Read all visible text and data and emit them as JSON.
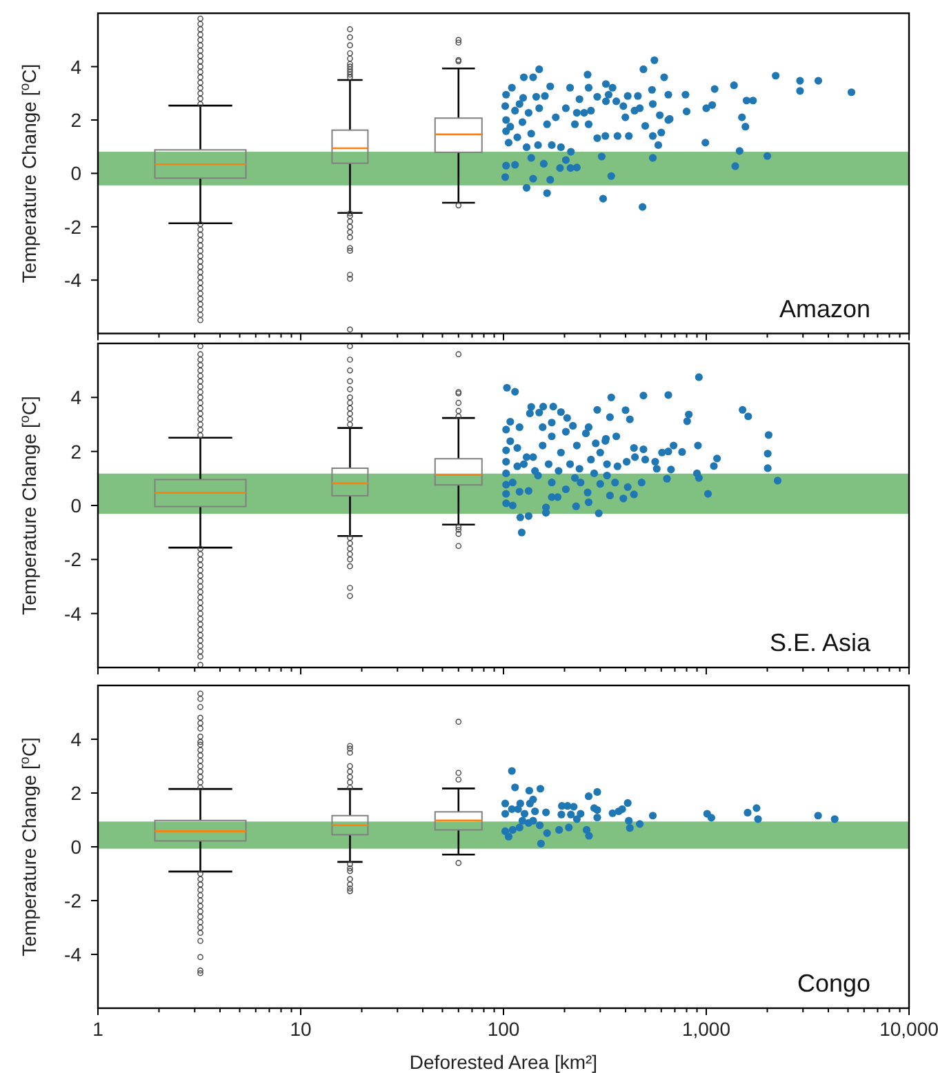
{
  "chart_data": [
    {
      "type": "scatter",
      "ylabel": "Temperature Change [$^{o}$C]",
      "annotations": [
        "Amazon"
      ],
      "log": "x",
      "xlim": [
        1,
        10000
      ],
      "xticks": [
        1,
        {
          "value": 2,
          "label": null
        },
        {
          "value": 3,
          "label": null
        },
        {
          "value": 4,
          "label": null
        },
        {
          "value": 5,
          "label": null
        },
        {
          "value": 6,
          "label": null
        },
        {
          "value": 7,
          "label": null
        },
        {
          "value": 8,
          "label": null
        },
        {
          "value": 9,
          "label": null
        },
        10,
        {
          "value": 20,
          "label": null
        },
        {
          "value": 30,
          "label": null
        },
        {
          "value": 40,
          "label": null
        },
        {
          "value": 50,
          "label": null
        },
        {
          "value": 60,
          "label": null
        },
        {
          "value": 70,
          "label": null
        },
        {
          "value": 80,
          "label": null
        },
        {
          "value": 90,
          "label": null
        },
        100,
        {
          "value": 200,
          "label": null
        },
        {
          "value": 300,
          "label": null
        },
        {
          "value": 400,
          "label": null
        },
        {
          "value": 500,
          "label": null
        },
        {
          "value": 600,
          "label": null
        },
        {
          "value": 700,
          "label": null
        },
        {
          "value": 800,
          "label": null
        },
        {
          "value": 900,
          "label": null
        },
        1000,
        {
          "value": 2000,
          "label": null
        },
        {
          "value": 3000,
          "label": null
        },
        {
          "value": 4000,
          "label": null
        },
        {
          "value": 5000,
          "label": null
        },
        {
          "value": 6000,
          "label": null
        },
        {
          "value": 7000,
          "label": null
        },
        {
          "value": 8000,
          "label": null
        },
        {
          "value": 9000,
          "label": null
        },
        10000
      ],
      "ylim": [
        -6,
        6
      ],
      "yticks": [
        -4,
        -2,
        0,
        2,
        4
      ],
      "tick_labels": "y",
      "marker": "circle",
      "bands": [
        {
          "axis": "y",
          "from": -0.45,
          "to": 0.81,
          "color": "#80c080"
        }
      ],
      "series": [
        {
          "type": "box",
          "color": "#808080",
          "x": [
            3.2,
            17.5,
            60
          ],
          "boxes": [
            {
              "low": -1.87,
              "q1": -0.18,
              "median": 0.34,
              "q3": 0.88,
              "high": 2.54,
              "outliers": [
                2.6,
                2.8,
                3.0,
                3.2,
                3.4,
                3.6,
                3.8,
                4.0,
                4.2,
                4.4,
                4.6,
                4.8,
                5.0,
                5.2,
                5.4,
                5.6,
                5.8,
                -1.9,
                -2.1,
                -2.3,
                -2.5,
                -2.7,
                -2.9,
                -3.1,
                -3.3,
                -3.5,
                -3.7,
                -3.9,
                -4.1,
                -4.3,
                -4.5,
                -4.7,
                -4.9,
                -5.1,
                -5.3,
                -5.5
              ]
            },
            {
              "low": -1.48,
              "q1": 0.38,
              "median": 0.94,
              "q3": 1.62,
              "high": 3.5,
              "outliers": [
                3.6,
                3.7,
                3.8,
                3.9,
                4.0,
                4.1,
                4.3,
                4.5,
                4.8,
                5.1,
                5.4,
                -1.5,
                -1.6,
                -1.8,
                -2.0,
                -2.2,
                -2.4,
                -2.8,
                -2.9,
                -3.8,
                -3.95,
                -5.85
              ]
            },
            {
              "low": -1.1,
              "q1": 0.79,
              "median": 1.46,
              "q3": 2.07,
              "high": 3.93,
              "outliers": [
                4.2,
                4.25,
                4.9,
                5.0,
                -1.2
              ]
            }
          ]
        },
        {
          "color": "#1f77b4",
          "x": [
            150,
            126,
            140,
            260,
            555,
            490,
            620,
            2200,
            2900,
            3570,
            2900,
            5200,
            1370,
            1100,
            1580,
            1700,
            1500,
            1560,
            1000,
            1070,
            990,
            1460,
            1390,
            2000,
            790,
            800,
            650,
            650,
            540,
            545,
            500,
            545,
            580,
            545,
            485,
            310,
            340,
            305,
            460,
            410,
            360,
            345,
            320,
            290,
            263,
            237,
            213,
            170,
            160,
            145,
            125,
            110,
            103,
            102,
            103,
            103,
            106,
            114,
            124,
            108,
            117,
            137,
            130,
            148,
            173,
            192,
            215,
            164,
            181,
            203,
            230,
            263,
            290,
            320,
            365,
            415,
            399,
            318,
            103,
            102,
            114,
            130,
            140,
            164,
            170,
            190,
            214,
            230,
            203,
            137,
            158,
            120,
            133,
            150,
            225,
            250,
            270,
            330,
            390,
            443,
            590,
            660,
            600,
            470
          ],
          "values": [
            3.9,
            3.6,
            3.6,
            3.7,
            4.24,
            3.9,
            3.6,
            3.66,
            3.47,
            3.47,
            3.09,
            3.04,
            3.3,
            3.16,
            2.73,
            2.73,
            2.1,
            1.75,
            2.44,
            2.56,
            1.15,
            0.84,
            0.27,
            0.65,
            2.95,
            2.32,
            2.0,
            2.95,
            3.13,
            2.6,
            1.78,
            1.4,
            1.06,
            0.58,
            -1.26,
            -0.95,
            -0.1,
            0.63,
            2.9,
            2.9,
            2.7,
            3.21,
            3.35,
            2.87,
            3.21,
            2.78,
            3.21,
            3.26,
            2.9,
            2.87,
            2.83,
            3.21,
            2.95,
            2.52,
            2.0,
            1.58,
            1.15,
            2.35,
            1.92,
            1.75,
            1.35,
            1.49,
            0.98,
            1.06,
            1.06,
            0.98,
            0.81,
            1.84,
            2.1,
            2.44,
            2.27,
            1.84,
            1.32,
            2.7,
            1.4,
            1.4,
            2.1,
            1.4,
            0.29,
            -0.14,
            0.32,
            -0.54,
            -0.2,
            -0.74,
            -0.24,
            0.2,
            0.2,
            0.22,
            0.5,
            0.58,
            0.36,
            2.6,
            2.27,
            2.44,
            1.84,
            2.27,
            2.35,
            2.95,
            2.52,
            2.35,
            2.18,
            2.04,
            1.53,
            2.44
          ]
        }
      ]
    },
    {
      "type": "scatter",
      "ylabel": "Temperature Change [$^{o}$C]",
      "annotations": [
        "S.E. Asia"
      ],
      "log": "x",
      "xlim": [
        1,
        10000
      ],
      "xticks": [
        1,
        {
          "value": 2,
          "label": null
        },
        {
          "value": 3,
          "label": null
        },
        {
          "value": 4,
          "label": null
        },
        {
          "value": 5,
          "label": null
        },
        {
          "value": 6,
          "label": null
        },
        {
          "value": 7,
          "label": null
        },
        {
          "value": 8,
          "label": null
        },
        {
          "value": 9,
          "label": null
        },
        10,
        {
          "value": 20,
          "label": null
        },
        {
          "value": 30,
          "label": null
        },
        {
          "value": 40,
          "label": null
        },
        {
          "value": 50,
          "label": null
        },
        {
          "value": 60,
          "label": null
        },
        {
          "value": 70,
          "label": null
        },
        {
          "value": 80,
          "label": null
        },
        {
          "value": 90,
          "label": null
        },
        100,
        {
          "value": 200,
          "label": null
        },
        {
          "value": 300,
          "label": null
        },
        {
          "value": 400,
          "label": null
        },
        {
          "value": 500,
          "label": null
        },
        {
          "value": 600,
          "label": null
        },
        {
          "value": 700,
          "label": null
        },
        {
          "value": 800,
          "label": null
        },
        {
          "value": 900,
          "label": null
        },
        1000,
        {
          "value": 2000,
          "label": null
        },
        {
          "value": 3000,
          "label": null
        },
        {
          "value": 4000,
          "label": null
        },
        {
          "value": 5000,
          "label": null
        },
        {
          "value": 6000,
          "label": null
        },
        {
          "value": 7000,
          "label": null
        },
        {
          "value": 8000,
          "label": null
        },
        {
          "value": 9000,
          "label": null
        },
        10000
      ],
      "ylim": [
        -6,
        6
      ],
      "yticks": [
        -4,
        -2,
        0,
        2,
        4
      ],
      "tick_labels": "y",
      "marker": "circle",
      "bands": [
        {
          "axis": "y",
          "from": -0.31,
          "to": 1.18,
          "color": "#80c080"
        }
      ],
      "series": [
        {
          "type": "box",
          "color": "#808080",
          "x": [
            3.2,
            17.5,
            60
          ],
          "boxes": [
            {
              "low": -1.56,
              "q1": -0.04,
              "median": 0.47,
              "q3": 0.96,
              "high": 2.51,
              "outliers": [
                2.6,
                2.8,
                3.0,
                3.2,
                3.4,
                3.6,
                3.8,
                4.0,
                4.2,
                4.4,
                4.6,
                4.8,
                5.0,
                5.2,
                5.4,
                5.6,
                5.9,
                -1.6,
                -1.8,
                -2.0,
                -2.2,
                -2.4,
                -2.6,
                -2.8,
                -3.0,
                -3.2,
                -3.4,
                -3.6,
                -3.8,
                -4.0,
                -4.2,
                -4.4,
                -4.6,
                -4.8,
                -5.0,
                -5.2,
                -5.4,
                -5.6,
                -5.9
              ]
            },
            {
              "low": -1.13,
              "q1": 0.36,
              "median": 0.82,
              "q3": 1.38,
              "high": 2.87,
              "outliers": [
                3.0,
                3.2,
                3.4,
                3.6,
                3.8,
                4.0,
                4.3,
                4.6,
                5.0,
                5.4,
                5.9,
                -1.2,
                -1.4,
                -1.6,
                -1.8,
                -2.0,
                -2.25,
                -3.05,
                -3.35
              ]
            },
            {
              "low": -0.71,
              "q1": 0.76,
              "median": 1.13,
              "q3": 1.73,
              "high": 3.24,
              "outliers": [
                3.3,
                3.5,
                3.8,
                4.15,
                4.2,
                5.6,
                -0.8,
                -0.9,
                -1.05,
                -1.5
              ]
            }
          ]
        },
        {
          "color": "#1f77b4",
          "x": [
            104,
            114,
            920,
            340,
            490,
            650,
            1510,
            1610,
            2030,
            2010,
            2010,
            2250,
            805,
            820,
            910,
            900,
            920,
            1020,
            1090,
            1130,
            760,
            690,
            650,
            605,
            570,
            640,
            670,
            490,
            440,
            420,
            400,
            335,
            290,
            360,
            320,
            285,
            255,
            220,
            206,
            192,
            176,
            157,
            137,
            135,
            150,
            108,
            120,
            103,
            108,
            103,
            103,
            103,
            103,
            103,
            103,
            111,
            121,
            133,
            123,
            162,
            162,
            173,
            185,
            228,
            263,
            295,
            260,
            335,
            390,
            440,
            410,
            480,
            355,
            300,
            240,
            203,
            173,
            148,
            133,
            126,
            140,
            156,
            173,
            192,
            213,
            237,
            270,
            300,
            324,
            365,
            405,
            445,
            500,
            560,
            156,
            173,
            203,
            230,
            263,
            318,
            117,
            130,
            117,
            143,
            167,
            187,
            225,
            280,
            324,
            111,
            120
          ],
          "values": [
            4.36,
            4.21,
            4.75,
            4.0,
            4.07,
            4.09,
            3.54,
            3.3,
            2.61,
            1.92,
            1.38,
            0.92,
            3.12,
            3.37,
            2.22,
            1.19,
            1.02,
            0.43,
            1.46,
            1.74,
            1.98,
            2.22,
            2.0,
            1.96,
            1.36,
            0.99,
            1.33,
            2.08,
            2.13,
            3.19,
            3.53,
            3.27,
            3.54,
            2.56,
            2.47,
            2.3,
            2.67,
            2.95,
            3.24,
            3.46,
            3.66,
            3.66,
            3.65,
            3.41,
            3.44,
            3.1,
            2.9,
            2.81,
            2.38,
            2.04,
            1.62,
            1.19,
            0.77,
            0.43,
            0.08,
            0.0,
            -0.44,
            -0.39,
            -1.0,
            -0.27,
            -0.07,
            0.31,
            0.31,
            -0.03,
            0.12,
            -0.29,
            0.48,
            0.37,
            0.26,
            0.41,
            0.68,
            0.85,
            0.85,
            0.8,
            0.85,
            0.6,
            0.85,
            1.11,
            0.54,
            1.53,
            1.79,
            2.22,
            2.56,
            1.96,
            1.53,
            1.36,
            1.7,
            1.96,
            1.53,
            1.45,
            1.62,
            1.79,
            1.7,
            1.62,
            2.9,
            3.07,
            2.73,
            2.22,
            2.9,
            2.39,
            2.13,
            1.79,
            1.45,
            1.28,
            1.53,
            1.28,
            1.02,
            1.19,
            1.11,
            0.85,
            0.51
          ]
        }
      ]
    },
    {
      "type": "scatter",
      "ylabel": "Temperature Change [$^{o}$C]",
      "xlabel": "Deforested Area [km²]",
      "annotations": [
        "Congo"
      ],
      "log": "x",
      "xlim": [
        1,
        10000
      ],
      "xticks": [
        1,
        {
          "value": 2,
          "label": null
        },
        {
          "value": 3,
          "label": null
        },
        {
          "value": 4,
          "label": null
        },
        {
          "value": 5,
          "label": null
        },
        {
          "value": 6,
          "label": null
        },
        {
          "value": 7,
          "label": null
        },
        {
          "value": 8,
          "label": null
        },
        {
          "value": 9,
          "label": null
        },
        10,
        {
          "value": 20,
          "label": null
        },
        {
          "value": 30,
          "label": null
        },
        {
          "value": 40,
          "label": null
        },
        {
          "value": 50,
          "label": null
        },
        {
          "value": 60,
          "label": null
        },
        {
          "value": 70,
          "label": null
        },
        {
          "value": 80,
          "label": null
        },
        {
          "value": 90,
          "label": null
        },
        100,
        {
          "value": 200,
          "label": null
        },
        {
          "value": 300,
          "label": null
        },
        {
          "value": 400,
          "label": null
        },
        {
          "value": 500,
          "label": null
        },
        {
          "value": 600,
          "label": null
        },
        {
          "value": 700,
          "label": null
        },
        {
          "value": 800,
          "label": null
        },
        {
          "value": 900,
          "label": null
        },
        {
          "value": 1000,
          "label": "1,000"
        },
        {
          "value": 2000,
          "label": null
        },
        {
          "value": 3000,
          "label": null
        },
        {
          "value": 4000,
          "label": null
        },
        {
          "value": 5000,
          "label": null
        },
        {
          "value": 6000,
          "label": null
        },
        {
          "value": 7000,
          "label": null
        },
        {
          "value": 8000,
          "label": null
        },
        {
          "value": 9000,
          "label": null
        },
        {
          "value": 10000,
          "label": "10,000"
        }
      ],
      "ylim": [
        -6,
        6
      ],
      "yticks": [
        -4,
        -2,
        0,
        2,
        4
      ],
      "marker": "circle",
      "bands": [
        {
          "axis": "y",
          "from": -0.07,
          "to": 0.94,
          "color": "#80c080"
        }
      ],
      "series": [
        {
          "type": "box",
          "color": "#808080",
          "x": [
            3.2,
            17.5,
            60
          ],
          "boxes": [
            {
              "low": -0.92,
              "q1": 0.22,
              "median": 0.58,
              "q3": 0.98,
              "high": 2.15,
              "outliers": [
                2.2,
                2.4,
                2.6,
                2.8,
                3.0,
                3.2,
                3.4,
                3.6,
                3.8,
                3.9,
                4.1,
                4.4,
                4.6,
                4.8,
                5.2,
                5.5,
                5.7,
                -1.0,
                -1.2,
                -1.4,
                -1.6,
                -1.8,
                -2.0,
                -2.2,
                -2.4,
                -2.6,
                -2.8,
                -3.0,
                -3.2,
                -3.5,
                -4.1,
                -4.6,
                -4.7
              ]
            },
            {
              "low": -0.56,
              "q1": 0.45,
              "median": 0.8,
              "q3": 1.16,
              "high": 2.15,
              "outliers": [
                2.2,
                2.4,
                2.6,
                2.8,
                3.0,
                3.5,
                3.65,
                3.75,
                -0.65,
                -0.8,
                -0.9,
                -1.2,
                -1.4,
                -1.55,
                -1.65
              ]
            },
            {
              "low": -0.29,
              "q1": 0.63,
              "median": 0.98,
              "q3": 1.3,
              "high": 2.17,
              "outliers": [
                2.5,
                2.75,
                4.65,
                -0.6
              ]
            }
          ]
        },
        {
          "color": "#1f77b4",
          "x": [
            110,
            114,
            134,
            152,
            263,
            290,
            102,
            121,
            135,
            140,
            194,
            207,
            222,
            280,
            290,
            410,
            385,
            370,
            345,
            102,
            110,
            118,
            127,
            143,
            162,
            193,
            215,
            240,
            545,
            1010,
            1060,
            1600,
            1770,
            1800,
            3560,
            4300,
            290,
            415,
            470,
            420,
            102,
            106,
            111,
            120,
            133,
            151,
            164,
            188,
            210,
            230,
            257,
            264,
            153,
            140,
            124
          ],
          "values": [
            2.82,
            2.21,
            2.09,
            2.16,
            1.88,
            2.04,
            1.61,
            1.61,
            1.61,
            1.76,
            1.52,
            1.52,
            1.49,
            1.44,
            1.37,
            1.63,
            1.4,
            1.32,
            1.25,
            1.23,
            1.4,
            1.4,
            1.23,
            1.32,
            1.28,
            1.2,
            1.2,
            1.23,
            1.16,
            1.23,
            1.08,
            1.27,
            1.44,
            1.03,
            1.16,
            1.03,
            1.09,
            0.97,
            0.85,
            0.7,
            0.58,
            0.38,
            0.63,
            0.72,
            0.89,
            0.8,
            0.51,
            0.63,
            0.72,
            1.03,
            0.63,
            0.41,
            0.12,
            0.97,
            0.97
          ]
        }
      ]
    }
  ]
}
